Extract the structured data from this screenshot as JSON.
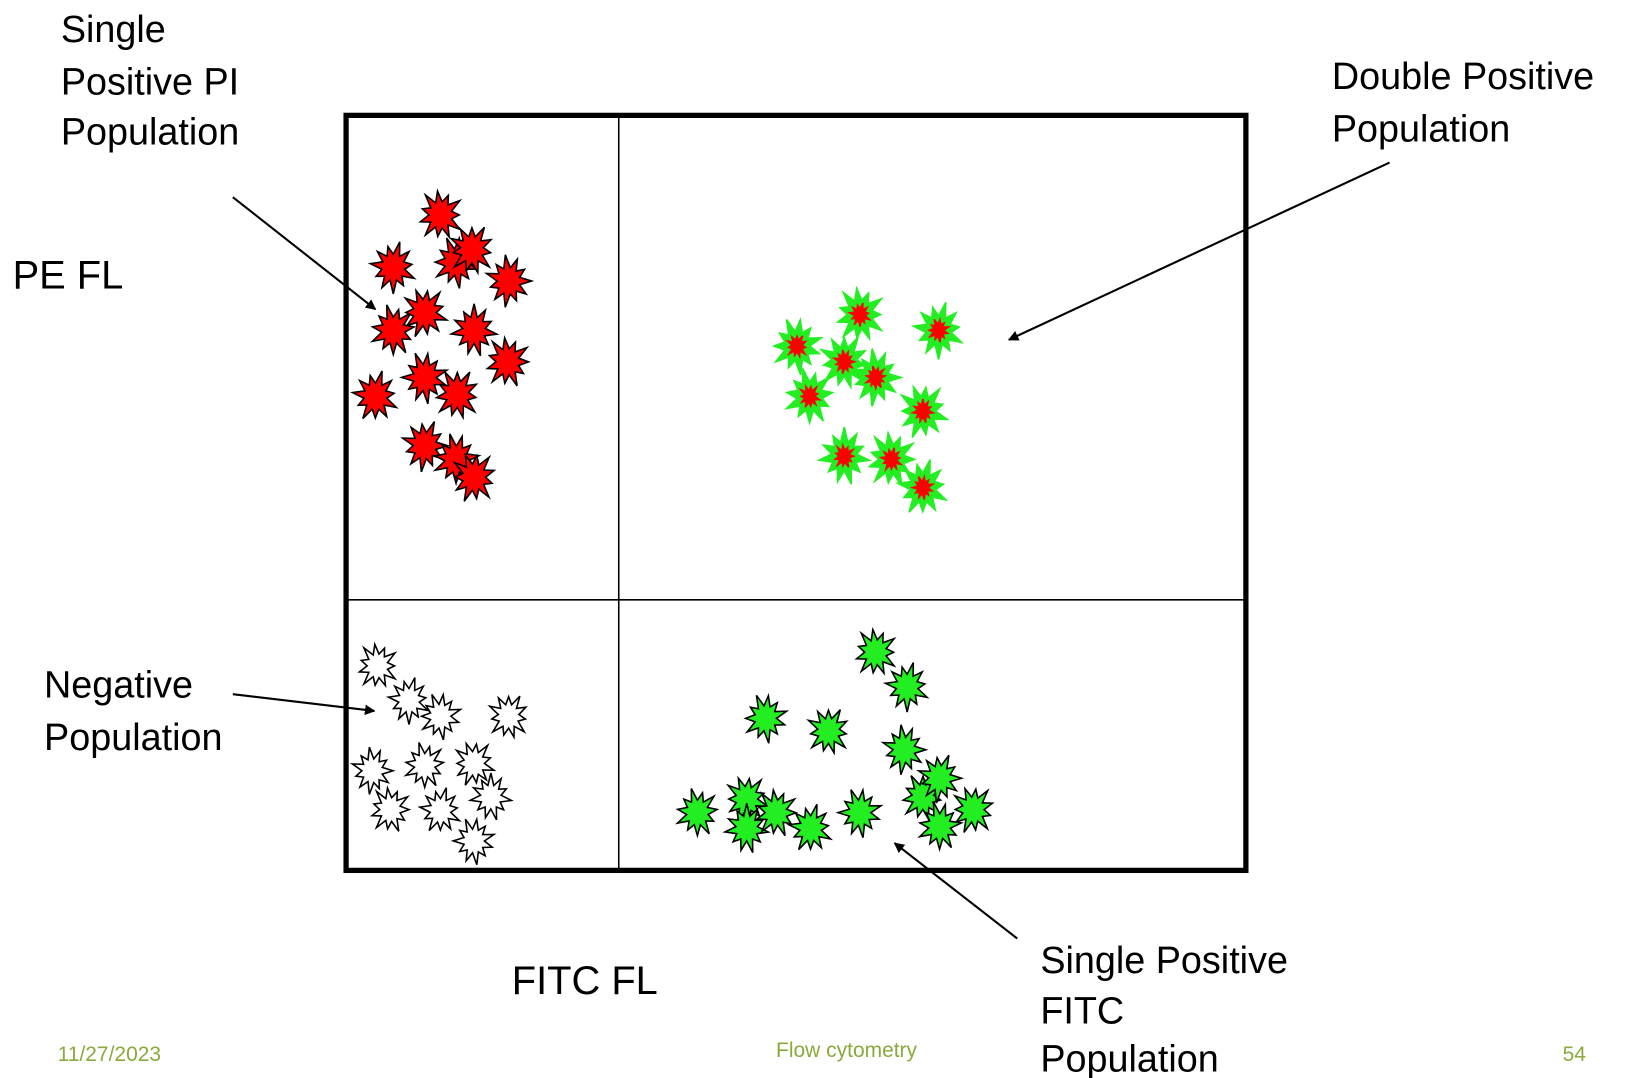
{
  "labels": {
    "single_positive_pi": {
      "lines": [
        "Single",
        "Positive PI",
        "Population"
      ]
    },
    "double_positive": {
      "lines": [
        "Double Positive",
        "Population"
      ]
    },
    "negative": {
      "lines": [
        "Negative",
        "Population"
      ]
    },
    "single_positive_fitc": {
      "lines": [
        "Single Positive",
        "FITC",
        "Population"
      ]
    }
  },
  "axes": {
    "y": "PE FL",
    "x": "FITC FL"
  },
  "footer": {
    "date": "11/27/2023",
    "title": "Flow cytometry",
    "page": "54"
  }
}
